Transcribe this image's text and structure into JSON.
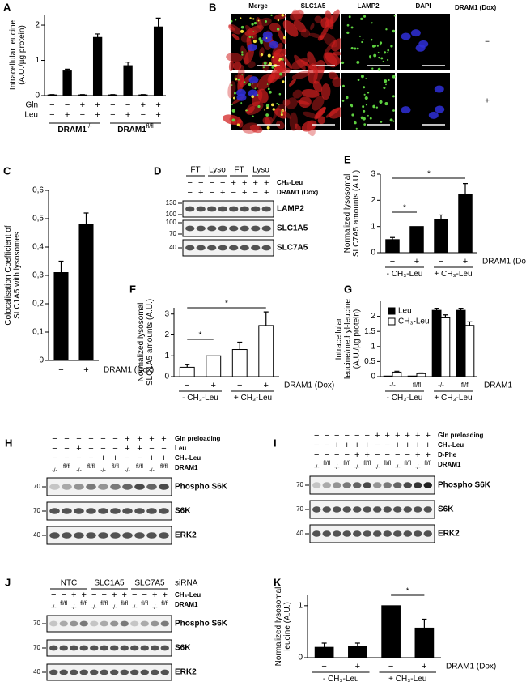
{
  "chart_data": [
    {
      "type": "bar",
      "panel": "A",
      "ylabel": [
        "Intracellular leucine",
        "(A.U./µg protein)"
      ],
      "categories": [
        null,
        null,
        null,
        null,
        null,
        null,
        null,
        null
      ],
      "values": [
        0.02,
        0.7,
        0.02,
        1.65,
        0.02,
        0.85,
        0.02,
        1.95
      ],
      "errors": [
        0.01,
        0.05,
        0.01,
        0.1,
        0.01,
        0.1,
        0.01,
        0.25
      ],
      "color": "#000000",
      "ylim": [
        0,
        2.3
      ],
      "yticks": [
        0,
        1,
        2
      ],
      "x_rows": [
        {
          "name": "Gln",
          "signs": [
            "−",
            "−",
            "+",
            "+",
            "−",
            "−",
            "+",
            "+"
          ]
        },
        {
          "name": "Leu",
          "signs": [
            "−",
            "+",
            "−",
            "+",
            "−",
            "+",
            "−",
            "+"
          ]
        }
      ],
      "row_label_side": "left",
      "groups": [
        {
          "label": "DRAM1",
          "sup": "-/-"
        },
        {
          "label": "DRAM1",
          "sup": "fl/fl"
        }
      ]
    },
    {
      "type": "bar",
      "panel": "C",
      "ylabel": [
        "Colocalisation Coefficient of",
        "SLC1A5 with lysosomes"
      ],
      "categories": [
        null,
        null
      ],
      "values": [
        0.31,
        0.48
      ],
      "errors": [
        0.04,
        0.04
      ],
      "color": "#000000",
      "ylim": [
        0,
        0.6
      ],
      "yticks": [
        0,
        {
          "value": 0.1,
          "label": "0,1"
        },
        {
          "value": 0.2,
          "label": "0,2"
        },
        {
          "value": 0.3,
          "label": "0,3"
        },
        {
          "value": 0.4,
          "label": "0,4"
        },
        {
          "value": 0.5,
          "label": "0,5"
        },
        {
          "value": 0.6,
          "label": "0,6"
        }
      ],
      "x_rows": [
        {
          "name": "DRAM1 (Dox)",
          "signs": [
            "−",
            "+"
          ]
        }
      ],
      "row_label_side": "right"
    },
    {
      "type": "bar",
      "panel": "E",
      "ylabel": [
        "Normalized lysosomal",
        "SLC7A5 amounts (A.U.)"
      ],
      "categories": [
        null,
        null,
        null,
        null
      ],
      "values": [
        0.5,
        1.0,
        1.27,
        2.22
      ],
      "errors": [
        0.08,
        null,
        0.17,
        0.42
      ],
      "color": "#000000",
      "ylim": [
        0,
        3
      ],
      "yticks": [
        0,
        1,
        2,
        3
      ],
      "x_rows": [
        {
          "name": "DRAM1 (Dox)",
          "signs": [
            "−",
            "+",
            "−",
            "+"
          ]
        }
      ],
      "row_label_side": "right",
      "groups": [
        {
          "label": "- CH₃-Leu"
        },
        {
          "label": "+ CH₃-Leu"
        }
      ],
      "annotations": [
        "*",
        "*"
      ]
    },
    {
      "type": "bar",
      "panel": "F",
      "ylabel": [
        "Normalized lysosomal",
        "SLC1A5 amounts (A.U.)"
      ],
      "categories": [
        null,
        null,
        null,
        null
      ],
      "values": [
        0.45,
        1.0,
        1.3,
        2.45
      ],
      "errors": [
        0.12,
        null,
        0.35,
        0.65
      ],
      "color": "#ffffff",
      "ylim": [
        0,
        3.3
      ],
      "yticks": [
        0,
        1,
        2,
        3
      ],
      "x_rows": [
        {
          "name": "DRAM1 (Dox)",
          "signs": [
            "−",
            "+",
            "−",
            "+"
          ]
        }
      ],
      "row_label_side": "right",
      "groups": [
        {
          "label": "- CH₃-Leu"
        },
        {
          "label": "+ CH₃-Leu"
        }
      ],
      "annotations": [
        "*",
        "*"
      ]
    },
    {
      "type": "bar",
      "panel": "G",
      "ylabel": [
        "Intracellular",
        "leucine/methyl-leucine",
        "(A.U./µg protein)"
      ],
      "categories": [
        "-/-",
        "fl/fl",
        "-/-",
        "fl/fl"
      ],
      "xlabel": "DRAM1",
      "series": [
        {
          "name": "Leu",
          "color": "#000000",
          "values": [
            0.02,
            0.02,
            2.2,
            2.2
          ],
          "errors": [
            null,
            null,
            0.07,
            0.07
          ]
        },
        {
          "name": "CH₃-Leu",
          "color": "#ffffff",
          "values": [
            0.15,
            0.1,
            1.95,
            1.7
          ],
          "errors": [
            0.03,
            0.02,
            0.1,
            0.12
          ]
        }
      ],
      "ylim": [
        0,
        2.5
      ],
      "yticks": [
        0,
        0.5,
        1,
        1.5,
        2
      ],
      "legend": "upper left",
      "groups": [
        {
          "label": "- CH₃-Leu"
        },
        {
          "label": "+ CH₃-Leu"
        }
      ]
    },
    {
      "type": "bar",
      "panel": "K",
      "ylabel": [
        "Normalized lysosomal",
        "leucine (A.U.)"
      ],
      "categories": [
        null,
        null,
        null,
        null
      ],
      "values": [
        0.2,
        0.22,
        1.0,
        0.57
      ],
      "errors": [
        0.08,
        0.06,
        null,
        0.17
      ],
      "color": "#000000",
      "ylim": [
        0,
        1.2
      ],
      "yticks": [
        0,
        1
      ],
      "x_rows": [
        {
          "name": "DRAM1 (Dox)",
          "signs": [
            "−",
            "+",
            "−",
            "+"
          ]
        }
      ],
      "row_label_side": "right",
      "groups": [
        {
          "label": "- CH₃-Leu"
        },
        {
          "label": "+ CH₃-Leu"
        }
      ],
      "annotations": [
        "*"
      ]
    }
  ],
  "micrographs": {
    "panel": "B",
    "columns": [
      "Merge",
      "SLC1A5",
      "LAMP2",
      "DAPI"
    ],
    "condition_label": "DRAM1 (Dox)",
    "rows": [
      "−",
      "+"
    ]
  },
  "blots": {
    "D": {
      "panel": "D",
      "headers": [
        "FT",
        "Lyso",
        "FT",
        "Lyso"
      ],
      "rows": [
        {
          "label": "CH₃-Leu",
          "signs": [
            "−",
            "−",
            "−",
            "−",
            "+",
            "+",
            "+",
            "+"
          ]
        },
        {
          "label": "DRAM1 (Dox)",
          "signs": [
            "−",
            "+",
            "−",
            "+",
            "−",
            "+",
            "−",
            "+"
          ]
        }
      ],
      "bands": [
        {
          "label": "LAMP2",
          "markers": [
            130,
            100
          ]
        },
        {
          "label": "SLC1A5",
          "markers": [
            100,
            70
          ]
        },
        {
          "label": "SLC7A5",
          "markers": [
            40
          ]
        }
      ]
    },
    "H": {
      "panel": "H",
      "rows": [
        {
          "label": "Gln preloading",
          "signs": [
            "−",
            "−",
            "−",
            "−",
            "−",
            "−",
            "+",
            "+",
            "+",
            "+"
          ]
        },
        {
          "label": "Leu",
          "signs": [
            "−",
            "−",
            "+",
            "+",
            "−",
            "−",
            "+",
            "+",
            "−",
            "−"
          ]
        },
        {
          "label": "CH₃-Leu",
          "signs": [
            "−",
            "−",
            "−",
            "−",
            "+",
            "+",
            "−",
            "−",
            "+",
            "+"
          ]
        },
        {
          "label": "DRAM1",
          "signs": [
            "-/-",
            "fl/fl",
            "-/-",
            "fl/fl",
            "-/-",
            "fl/fl",
            "-/-",
            "fl/fl",
            "-/-",
            "fl/fl"
          ]
        }
      ],
      "bands": [
        {
          "label": "Phospho S6K",
          "markers": [
            70
          ]
        },
        {
          "label": "S6K",
          "markers": [
            70
          ]
        },
        {
          "label": "ERK2",
          "markers": [
            40
          ]
        }
      ]
    },
    "I": {
      "panel": "I",
      "rows": [
        {
          "label": "Gln preloading",
          "signs": [
            "−",
            "−",
            "−",
            "−",
            "−",
            "−",
            "+",
            "+",
            "+",
            "+",
            "+",
            "+"
          ]
        },
        {
          "label": "CH₃-Leu",
          "signs": [
            "−",
            "−",
            "+",
            "+",
            "+",
            "+",
            "−",
            "−",
            "+",
            "+",
            "+",
            "+"
          ]
        },
        {
          "label": "D-Phe",
          "signs": [
            "−",
            "−",
            "−",
            "−",
            "+",
            "+",
            "−",
            "−",
            "−",
            "−",
            "+",
            "+"
          ]
        },
        {
          "label": "DRAM1",
          "signs": [
            "-/-",
            "fl/fl",
            "-/-",
            "fl/fl",
            "-/-",
            "fl/fl",
            "-/-",
            "fl/fl",
            "-/-",
            "fl/fl",
            "-/-",
            "fl/fl"
          ]
        }
      ],
      "bands": [
        {
          "label": "Phospho S6K",
          "markers": [
            70
          ]
        },
        {
          "label": "S6K",
          "markers": [
            70
          ]
        },
        {
          "label": "ERK2",
          "markers": [
            40
          ]
        }
      ]
    },
    "J": {
      "panel": "J",
      "headers": [
        "NTC",
        "SLC1A5",
        "SLC7A5"
      ],
      "headers_label": "siRNA",
      "rows": [
        {
          "label": "CH₃-Leu",
          "signs": [
            "−",
            "−",
            "+",
            "+",
            "−",
            "−",
            "+",
            "+",
            "−",
            "−",
            "+",
            "+"
          ]
        },
        {
          "label": "DRAM1",
          "signs": [
            "-/-",
            "fl/fl",
            "-/-",
            "fl/fl",
            "-/-",
            "fl/fl",
            "-/-",
            "fl/fl",
            "-/-",
            "fl/fl",
            "-/-",
            "fl/fl"
          ]
        }
      ],
      "bands": [
        {
          "label": "Phospho S6K",
          "markers": [
            70
          ]
        },
        {
          "label": "S6K",
          "markers": [
            70
          ]
        },
        {
          "label": "ERK2",
          "markers": [
            40
          ]
        }
      ]
    }
  }
}
